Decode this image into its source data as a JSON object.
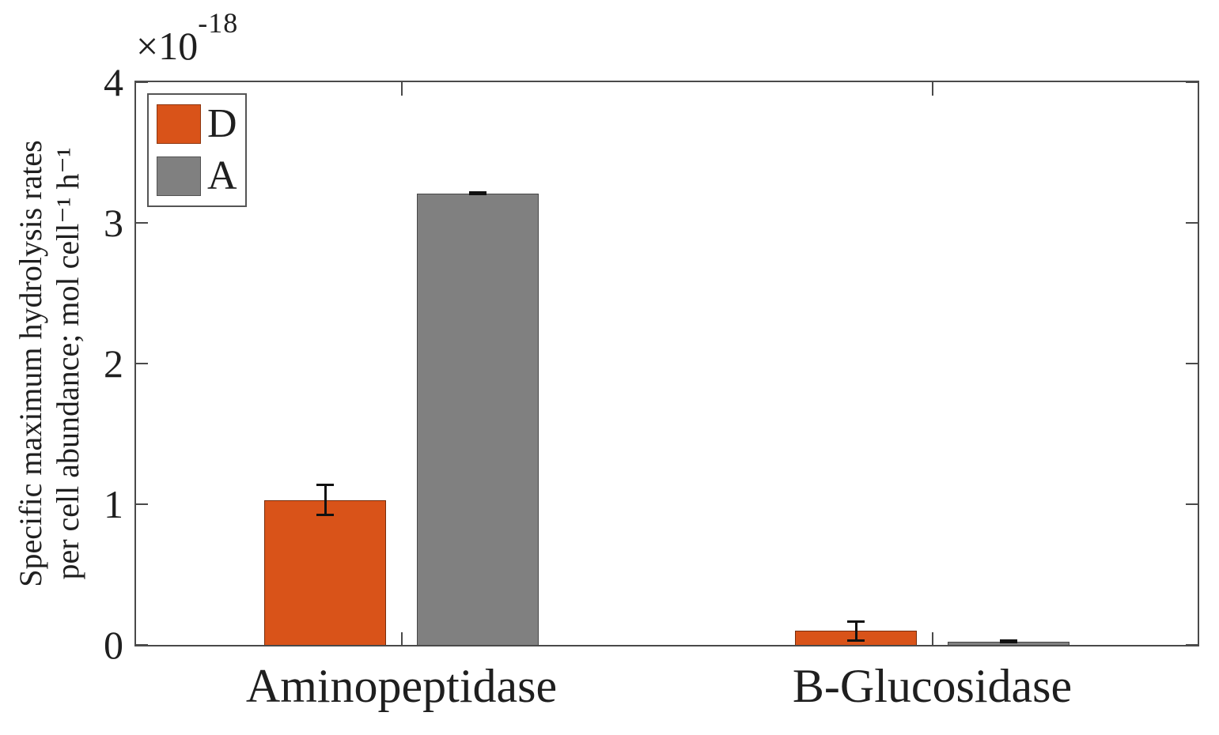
{
  "chart_data": {
    "type": "bar",
    "title": "",
    "categories": [
      "Aminopeptidase",
      "B-Glucosidase"
    ],
    "series": [
      {
        "name": "D",
        "color": "#D95319",
        "values": [
          1.03,
          0.1
        ],
        "errors": [
          0.11,
          0.07
        ]
      },
      {
        "name": "A",
        "color": "#808080",
        "values": [
          3.21,
          0.025
        ],
        "errors": [
          0.01,
          0.008
        ]
      }
    ],
    "ylabel_line1": "Specific maximum hydrolysis rates",
    "ylabel_line2": "per cell abundance; mol cell⁻¹ h⁻¹",
    "y_scale_label": {
      "base": "×10",
      "exponent": "-18"
    },
    "ylim": [
      0,
      4
    ],
    "yticks": [
      "0",
      "1",
      "2",
      "3",
      "4"
    ],
    "xlabel": "",
    "legend_position": "top-left",
    "grid": false
  },
  "colors": {
    "bar_d": "#D95319",
    "bar_a": "#808080",
    "axis": "#4a4a4a",
    "error_bar": "#111111",
    "text": "#1f1f1f",
    "background": "#ffffff"
  }
}
